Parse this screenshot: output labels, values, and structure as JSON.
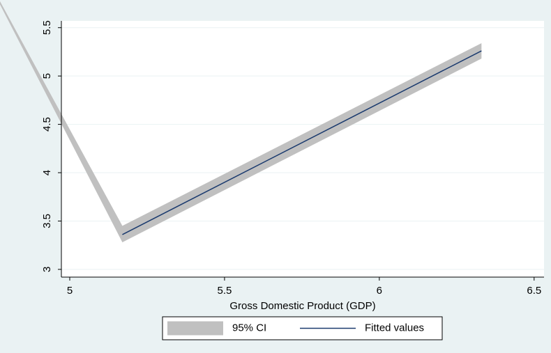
{
  "chart_data": {
    "type": "line",
    "xlabel": "Gross Domestic Product (GDP)",
    "xlim": [
      4.973,
      6.532
    ],
    "ylim": [
      2.92,
      5.57
    ],
    "xticks": [
      5,
      5.5,
      6,
      6.5
    ],
    "yticks": [
      3,
      3.5,
      4,
      4.5,
      5,
      5.5
    ],
    "grid": true,
    "series": [
      {
        "name": "95% CI",
        "kind": "band",
        "color": "#c0c0c0",
        "x": [
          4.77,
          5.17,
          6.33
        ],
        "lower": [
          5.77,
          3.28,
          5.18
        ],
        "upper": [
          5.8,
          3.45,
          5.34
        ]
      },
      {
        "name": "Fitted values",
        "kind": "line",
        "color": "#1a3a6e",
        "x": [
          5.17,
          6.33
        ],
        "values": [
          3.36,
          5.26
        ]
      }
    ]
  }
}
